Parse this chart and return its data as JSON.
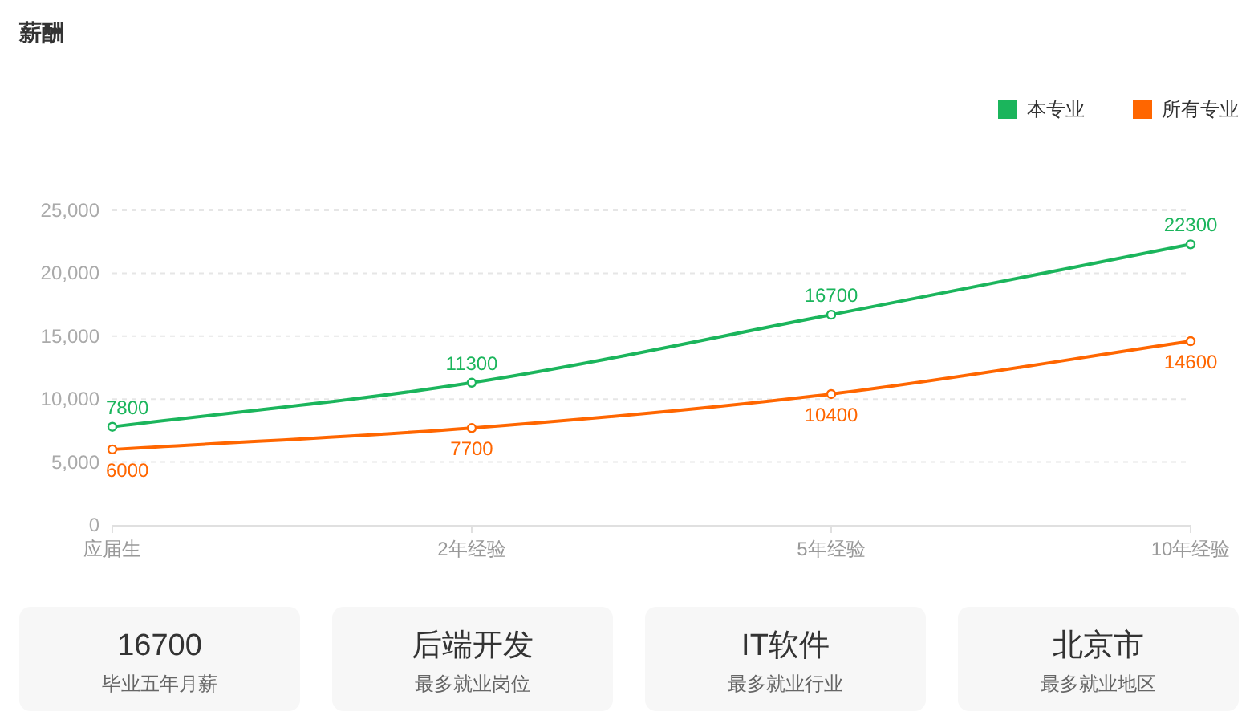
{
  "chart_data": [
    {
      "type": "line",
      "title": "薪酬",
      "categories": [
        "应届生",
        "2年经验",
        "5年经验",
        "10年经验"
      ],
      "series": [
        {
          "name": "本专业",
          "color": "#1bb55c",
          "values": [
            7800,
            11300,
            16700,
            22300
          ]
        },
        {
          "name": "所有专业",
          "color": "#ff6600",
          "values": [
            6000,
            7700,
            10400,
            14600
          ]
        }
      ],
      "ylim": [
        0,
        25000
      ],
      "yticks": [
        0,
        {
          "value": 5000,
          "label": "5,000"
        },
        {
          "value": 10000,
          "label": "10,000"
        },
        {
          "value": 15000,
          "label": "15,000"
        },
        {
          "value": 20000,
          "label": "20,000"
        },
        {
          "value": 25000,
          "label": "25,000"
        }
      ],
      "grid": "y",
      "legend": "top right",
      "marker": "circle",
      "line_style": "solid",
      "data_labels": true
    },
    {
      "type": "other",
      "annotations": [
        "16700",
        "毕业五年月薪",
        "后端开发",
        "最多就业岗位",
        "IT软件",
        "最多就业行业",
        "北京市",
        "最多就业地区"
      ]
    }
  ]
}
